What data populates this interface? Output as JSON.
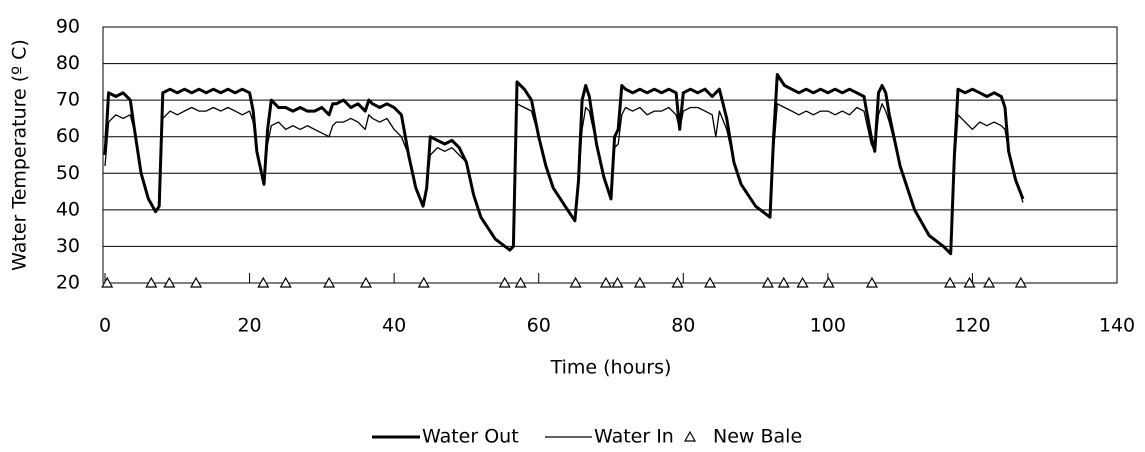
{
  "chart_data": {
    "type": "line",
    "xlabel": "Time (hours)",
    "ylabel": "Water Temperature (º C)",
    "xlim": [
      0,
      140
    ],
    "xticks": [
      0,
      20,
      40,
      60,
      80,
      100,
      120,
      140
    ],
    "ylim": [
      20,
      90
    ],
    "yticks": [
      20,
      30,
      40,
      50,
      60,
      70,
      80,
      90
    ],
    "grid": true,
    "legend": "bottom",
    "x": [
      0,
      0.5,
      1.5,
      2.5,
      3.5,
      4,
      5,
      6,
      7,
      7.5,
      8,
      9,
      10,
      11,
      12,
      13,
      14,
      15,
      16,
      17,
      18,
      19,
      20,
      20.5,
      21,
      22,
      22.5,
      23,
      24,
      25,
      26,
      27,
      28,
      29,
      30,
      31,
      31.5,
      32,
      33,
      34,
      35,
      36,
      36.5,
      37,
      38,
      39,
      40,
      41,
      42,
      43,
      44,
      44.5,
      45,
      46,
      47,
      48,
      49,
      50,
      51,
      52,
      54,
      56,
      56.5,
      57,
      58,
      59,
      60,
      61,
      62,
      64,
      65,
      65.5,
      66,
      66.5,
      67,
      68,
      69,
      70,
      70.5,
      71,
      71.5,
      72,
      73,
      74,
      75,
      76,
      77,
      78,
      79,
      79.5,
      80,
      81,
      82,
      83,
      84,
      84.5,
      85,
      86,
      87,
      88,
      90,
      92,
      92.5,
      93,
      94,
      95,
      96,
      97,
      98,
      99,
      100,
      101,
      102,
      103,
      104,
      105,
      106,
      106.5,
      107,
      107.5,
      108,
      108.5,
      110,
      112,
      114,
      116,
      117,
      117.5,
      118,
      119,
      120,
      121,
      122,
      123,
      124,
      124.5,
      125,
      126,
      127
    ],
    "series": [
      {
        "name": "Water Out",
        "color": "#000000",
        "width": 3,
        "values": [
          55,
          72,
          71,
          72,
          70,
          63,
          50,
          43,
          39.5,
          41,
          72,
          73,
          72,
          73,
          72,
          73,
          72,
          73,
          72,
          73,
          72,
          73,
          72,
          67,
          56,
          47,
          62,
          70,
          68,
          68,
          67,
          68,
          67,
          67,
          68,
          66,
          69,
          69,
          70,
          68,
          69,
          67,
          70,
          69,
          68,
          69,
          68,
          66,
          55,
          46,
          41,
          46,
          60,
          59,
          58,
          59,
          57,
          53,
          44,
          38,
          32,
          29,
          30,
          75,
          73,
          70,
          60,
          52,
          46,
          40,
          37,
          48,
          70,
          74,
          71,
          58,
          49,
          43,
          60,
          62,
          74,
          73,
          72,
          73,
          72,
          73,
          72,
          73,
          72,
          62,
          72,
          73,
          72,
          73,
          71,
          72,
          73,
          65,
          53,
          47,
          41,
          38,
          60,
          77,
          74,
          73,
          72,
          73,
          72,
          73,
          72,
          73,
          72,
          73,
          72,
          71,
          60,
          56,
          72,
          74,
          72,
          66,
          52,
          40,
          33,
          30,
          28,
          55,
          73,
          72,
          73,
          72,
          71,
          72,
          71,
          68,
          56,
          48,
          43
        ]
      },
      {
        "name": "Water In",
        "color": "#000000",
        "width": 1.3,
        "values": [
          52,
          64,
          66,
          65,
          66,
          62,
          50,
          43,
          39.5,
          41,
          65,
          67,
          66,
          67,
          68,
          67,
          67,
          68,
          67,
          68,
          67,
          66,
          67,
          64,
          56,
          47,
          58,
          63,
          64,
          62,
          63,
          62,
          63,
          62,
          61,
          60,
          63,
          64,
          64,
          65,
          64,
          62,
          66,
          65,
          64,
          65,
          62,
          60,
          55,
          46,
          41,
          46,
          55,
          57,
          56,
          57,
          55,
          53,
          44,
          38,
          32,
          29,
          30,
          69,
          68,
          67,
          60,
          52,
          46,
          40,
          37,
          48,
          62,
          68,
          67,
          58,
          49,
          43,
          57,
          58,
          66,
          68,
          67,
          68,
          66,
          67,
          67,
          68,
          66,
          62,
          67,
          68,
          68,
          67,
          66,
          60,
          67,
          62,
          53,
          47,
          41,
          38,
          56,
          69,
          68,
          67,
          66,
          67,
          66,
          67,
          67,
          66,
          67,
          66,
          68,
          67,
          58,
          56,
          66,
          69,
          67,
          64,
          52,
          40,
          33,
          30,
          28,
          52,
          66,
          64,
          62,
          64,
          63,
          64,
          63,
          62,
          56,
          48,
          42
        ]
      }
    ],
    "markers": {
      "name": "New Bale",
      "color": "#000000",
      "x": [
        0.3,
        6.4,
        8.9,
        12.6,
        21.9,
        25.0,
        31.0,
        36.1,
        44.1,
        55.3,
        57.5,
        65.1,
        69.3,
        70.9,
        74.0,
        79.2,
        83.7,
        91.7,
        93.9,
        96.5,
        100.1,
        106.1,
        116.9,
        119.6,
        122.3,
        126.7
      ],
      "values": [
        20,
        20,
        20,
        20,
        20,
        20,
        20,
        20,
        20,
        20,
        20,
        20,
        20,
        20,
        20,
        20,
        20,
        20,
        20,
        20,
        20,
        20,
        20,
        20,
        20,
        20
      ]
    }
  }
}
